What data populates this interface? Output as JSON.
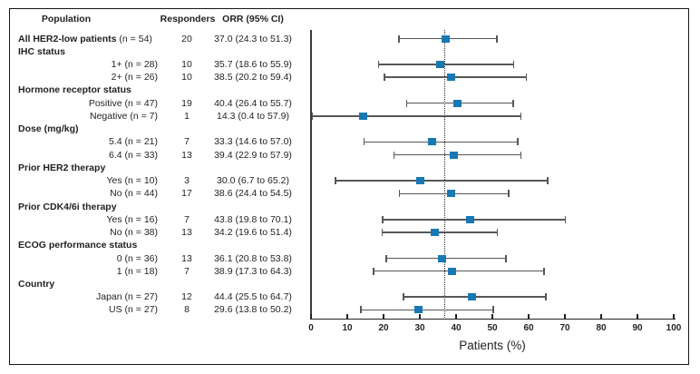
{
  "colors": {
    "marker": "#1878b4",
    "ci_line": "#55575a",
    "text": "#231f20",
    "axis": "#231f20",
    "ref_line": "#2a2a2a"
  },
  "chart_data": {
    "type": "forest",
    "columns": {
      "population": "Population",
      "responders": "Responders",
      "orr": "ORR (95% CI)"
    },
    "xlabel": "Patients (%)",
    "xlim": [
      0,
      100
    ],
    "xticks": [
      0,
      10,
      20,
      30,
      40,
      50,
      60,
      70,
      80,
      90,
      100
    ],
    "reference_line": 37.0,
    "grid": false,
    "legend": "none",
    "rows": [
      {
        "kind": "overall",
        "label_bold": "All HER2-low patients",
        "label_rest": " (n = 54)",
        "responders": "20",
        "orr_text": "37.0 (24.3 to 51.3)",
        "est": 37.0,
        "lo": 24.3,
        "hi": 51.3
      },
      {
        "kind": "category",
        "label": "IHC status"
      },
      {
        "kind": "item",
        "label": "1+ (n = 28)",
        "responders": "10",
        "orr_text": "35.7 (18.6 to 55.9)",
        "est": 35.7,
        "lo": 18.6,
        "hi": 55.9
      },
      {
        "kind": "item",
        "label": "2+ (n = 26)",
        "responders": "10",
        "orr_text": "38.5 (20.2 to 59.4)",
        "est": 38.5,
        "lo": 20.2,
        "hi": 59.4
      },
      {
        "kind": "category",
        "label": "Hormone receptor status"
      },
      {
        "kind": "item",
        "label": "Positive (n = 47)",
        "responders": "19",
        "orr_text": "40.4 (26.4 to 55.7)",
        "est": 40.4,
        "lo": 26.4,
        "hi": 55.7
      },
      {
        "kind": "item",
        "label": "Negative (n = 7)",
        "responders": "1",
        "orr_text": "14.3 (0.4 to 57.9)",
        "est": 14.3,
        "lo": 0.4,
        "hi": 57.9
      },
      {
        "kind": "category",
        "label": "Dose (mg/kg)"
      },
      {
        "kind": "item",
        "label": "5.4 (n = 21)",
        "responders": "7",
        "orr_text": "33.3 (14.6 to 57.0)",
        "est": 33.3,
        "lo": 14.6,
        "hi": 57.0
      },
      {
        "kind": "item",
        "label": "6.4 (n = 33)",
        "responders": "13",
        "orr_text": "39.4 (22.9 to 57.9)",
        "est": 39.4,
        "lo": 22.9,
        "hi": 57.9
      },
      {
        "kind": "category",
        "label": "Prior HER2 therapy"
      },
      {
        "kind": "item",
        "label": "Yes (n = 10)",
        "responders": "3",
        "orr_text": "30.0 (6.7 to 65.2)",
        "est": 30.0,
        "lo": 6.7,
        "hi": 65.2
      },
      {
        "kind": "item",
        "label": "No (n = 44)",
        "responders": "17",
        "orr_text": "38.6 (24.4 to 54.5)",
        "est": 38.6,
        "lo": 24.4,
        "hi": 54.5
      },
      {
        "kind": "category",
        "label": "Prior CDK4/6i therapy"
      },
      {
        "kind": "item",
        "label": "Yes (n = 16)",
        "responders": "7",
        "orr_text": "43.8 (19.8 to 70.1)",
        "est": 43.8,
        "lo": 19.8,
        "hi": 70.1
      },
      {
        "kind": "item",
        "label": "No (n = 38)",
        "responders": "13",
        "orr_text": "34.2 (19.6 to 51.4)",
        "est": 34.2,
        "lo": 19.6,
        "hi": 51.4
      },
      {
        "kind": "category",
        "label": "ECOG performance status"
      },
      {
        "kind": "item",
        "label": "0 (n = 36)",
        "responders": "13",
        "orr_text": "36.1 (20.8 to 53.8)",
        "est": 36.1,
        "lo": 20.8,
        "hi": 53.8
      },
      {
        "kind": "item",
        "label": "1 (n = 18)",
        "responders": "7",
        "orr_text": "38.9 (17.3 to 64.3)",
        "est": 38.9,
        "lo": 17.3,
        "hi": 64.3
      },
      {
        "kind": "category",
        "label": "Country"
      },
      {
        "kind": "item",
        "label": "Japan (n = 27)",
        "responders": "12",
        "orr_text": "44.4 (25.5 to 64.7)",
        "est": 44.4,
        "lo": 25.5,
        "hi": 64.7
      },
      {
        "kind": "item",
        "label": "US (n = 27)",
        "responders": "8",
        "orr_text": "29.6 (13.8 to 50.2)",
        "est": 29.6,
        "lo": 13.8,
        "hi": 50.2
      }
    ]
  }
}
